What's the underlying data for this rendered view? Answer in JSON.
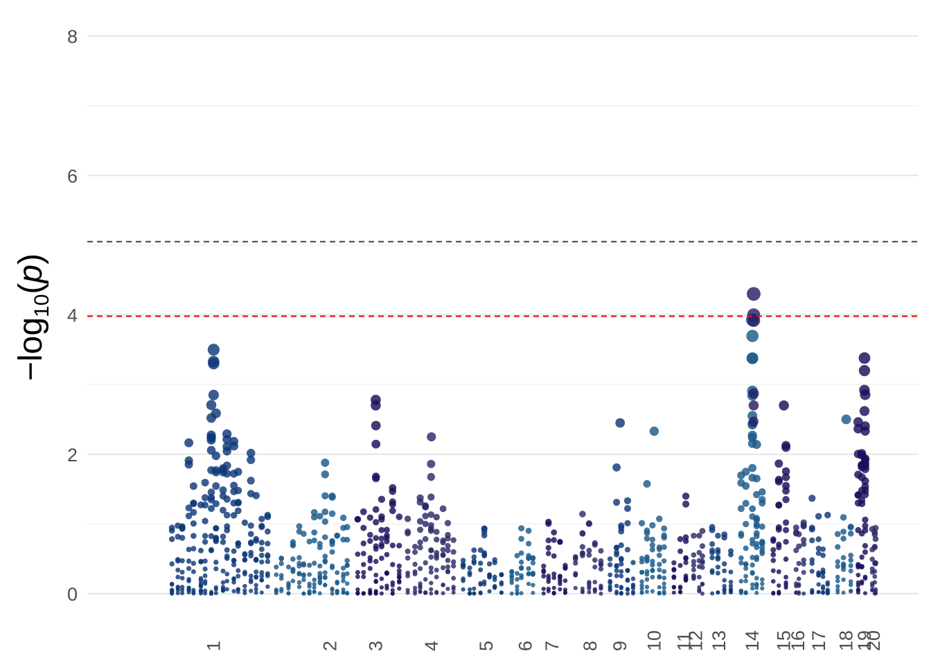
{
  "chart_data": {
    "type": "scatter",
    "subtype": "manhattan",
    "title": "",
    "xlabel": "",
    "ylabel": "-log10(p)",
    "ylim": [
      0,
      8
    ],
    "yticks": [
      0,
      2,
      4,
      6,
      8
    ],
    "grid": true,
    "legend": "none",
    "colors": [
      "#0f3877",
      "#1b5a8a",
      "#1b0f5a",
      "#2b2b69"
    ],
    "thresholds": [
      {
        "value": 5.05,
        "color": "#555555",
        "style": "dashed"
      },
      {
        "value": 3.98,
        "color": "#e8141c",
        "style": "dashed"
      }
    ],
    "chromosomes": [
      {
        "label": "1",
        "x": 0.152,
        "peak": 3.5
      },
      {
        "label": "2",
        "x": 0.292,
        "peak": 2.1
      },
      {
        "label": "3",
        "x": 0.347,
        "peak": 2.78
      },
      {
        "label": "4",
        "x": 0.414,
        "peak": 2.25
      },
      {
        "label": "5",
        "x": 0.48,
        "peak": 1.25
      },
      {
        "label": "6",
        "x": 0.527,
        "peak": 1.5
      },
      {
        "label": "7",
        "x": 0.559,
        "peak": 1.32
      },
      {
        "label": "8",
        "x": 0.605,
        "peak": 1.92
      },
      {
        "label": "9",
        "x": 0.641,
        "peak": 2.45
      },
      {
        "label": "10",
        "x": 0.682,
        "peak": 2.33
      },
      {
        "label": "11",
        "x": 0.718,
        "peak": 1.95
      },
      {
        "label": "12",
        "x": 0.732,
        "peak": 1.4
      },
      {
        "label": "13",
        "x": 0.76,
        "peak": 1.78
      },
      {
        "label": "14",
        "x": 0.8,
        "peak": 4.3
      },
      {
        "label": "15",
        "x": 0.838,
        "peak": 2.7
      },
      {
        "label": "16",
        "x": 0.855,
        "peak": 1.6
      },
      {
        "label": "17",
        "x": 0.88,
        "peak": 1.93
      },
      {
        "label": "18",
        "x": 0.913,
        "peak": 2.5
      },
      {
        "label": "19",
        "x": 0.935,
        "peak": 3.38
      },
      {
        "label": "20",
        "x": 0.946,
        "peak": 1.55
      }
    ],
    "highlight_points": [
      {
        "chrom": "1",
        "y": 3.5
      },
      {
        "chrom": "1",
        "y": 3.33
      },
      {
        "chrom": "1",
        "y": 3.3
      },
      {
        "chrom": "1",
        "y": 2.85
      },
      {
        "chrom": "14",
        "y": 4.3
      },
      {
        "chrom": "14",
        "y": 4.0
      },
      {
        "chrom": "14",
        "y": 3.92
      },
      {
        "chrom": "14",
        "y": 2.87
      },
      {
        "chrom": "14",
        "y": 2.7
      },
      {
        "chrom": "14",
        "y": 2.47
      },
      {
        "chrom": "19",
        "y": 3.38
      },
      {
        "chrom": "19",
        "y": 3.2
      },
      {
        "chrom": "19",
        "y": 2.92
      },
      {
        "chrom": "19",
        "y": 2.62
      },
      {
        "chrom": "3",
        "y": 2.78
      },
      {
        "chrom": "3",
        "y": 2.7
      },
      {
        "chrom": "15",
        "y": 2.7
      },
      {
        "chrom": "18",
        "y": 2.5
      },
      {
        "chrom": "9",
        "y": 2.45
      },
      {
        "chrom": "10",
        "y": 2.33
      },
      {
        "chrom": "4",
        "y": 2.25
      }
    ]
  }
}
